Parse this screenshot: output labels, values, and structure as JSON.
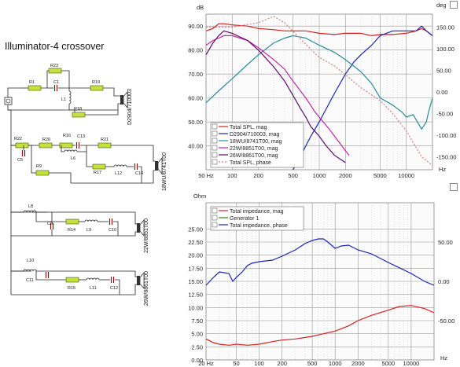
{
  "title": "Illuminator-4 crossover",
  "schematic": {
    "components": [
      "R1",
      "R23",
      "C1",
      "L1",
      "R19",
      "R18",
      "R22",
      "R20",
      "R16",
      "C13",
      "L6",
      "C5",
      "R21",
      "R9",
      "R17",
      "L12",
      "C14",
      "L8",
      "C9",
      "R14",
      "L9",
      "C10",
      "L10",
      "C11",
      "R15",
      "L11",
      "C12"
    ],
    "drivers": [
      "D2904/710003",
      "18WU/8741T00",
      "22W/8851T00",
      "26W/8861T00"
    ]
  },
  "chart_data": [
    {
      "type": "line",
      "y_unit": "dB",
      "y2_unit": "deg",
      "x_unit": "Hz",
      "x_scale": "log",
      "xlim": [
        50,
        20000
      ],
      "ylim": [
        30,
        95
      ],
      "y2lim": [
        -180,
        180
      ],
      "grid": true,
      "x_ticks": [
        "50 Hz",
        "100",
        "200",
        "500",
        "1000",
        "2000",
        "5000",
        "10000"
      ],
      "y_ticks": [
        "90.00",
        "80.00",
        "70.00",
        "60.00",
        "50.00",
        "40.00"
      ],
      "y2_ticks": [
        "150.00",
        "100.00",
        "50.00",
        "0.00",
        "-50.00",
        "-100.00",
        "-150.00"
      ],
      "legend_position": "bottom-left",
      "series": [
        {
          "name": "Total SPL, mag",
          "color": "#d42020",
          "axis": "left",
          "x": [
            50,
            60,
            70,
            80,
            100,
            150,
            200,
            300,
            400,
            500,
            700,
            1000,
            1500,
            2000,
            3000,
            4000,
            5000,
            7000,
            10000,
            13000,
            15000,
            17000,
            20000
          ],
          "y": [
            88,
            89,
            91,
            91,
            90.5,
            90,
            89,
            88.5,
            88,
            88,
            88,
            87,
            86.5,
            87,
            87,
            86,
            86.5,
            86.5,
            87,
            88,
            89,
            88,
            86
          ]
        },
        {
          "name": "D2904/710003, mag",
          "color": "#1a24b4",
          "axis": "left",
          "x": [
            500,
            600,
            700,
            800,
            1000,
            1500,
            2000,
            2500,
            3000,
            4000,
            5000,
            7000,
            10000,
            13000,
            15000,
            17000,
            20000
          ],
          "y": [
            30,
            35,
            40,
            44,
            50,
            62,
            70,
            75,
            78,
            82,
            86,
            88,
            88,
            88,
            90,
            88,
            86
          ]
        },
        {
          "name": "18WU/8741T00, mag",
          "color": "#2a8a9a",
          "axis": "left",
          "x": [
            50,
            70,
            100,
            150,
            200,
            300,
            400,
            500,
            700,
            1000,
            1500,
            2000,
            3000,
            4000,
            5000,
            7000,
            9000,
            10000,
            12000,
            15000,
            17000,
            18000,
            20000
          ],
          "y": [
            58,
            63,
            68,
            74,
            78,
            83,
            85,
            86,
            85,
            82,
            79,
            76,
            71,
            66,
            60,
            57,
            54,
            52,
            53,
            47,
            50,
            54,
            60
          ]
        },
        {
          "name": "22W/8851T00, mag",
          "color": "#c424a4",
          "axis": "left",
          "x": [
            50,
            60,
            70,
            80,
            100,
            150,
            200,
            300,
            400,
            500,
            700,
            900,
            1000,
            1300,
            1500,
            2000,
            2200
          ],
          "y": [
            82,
            84,
            85,
            86,
            86,
            84,
            81,
            76,
            72,
            67,
            60,
            54,
            52,
            47,
            44,
            38,
            36
          ]
        },
        {
          "name": "26W/8861T00, mag",
          "color": "#5a0a6a",
          "axis": "left",
          "x": [
            50,
            60,
            70,
            80,
            100,
            150,
            200,
            300,
            400,
            500,
            600,
            700,
            800,
            1000,
            1200,
            1500,
            2000
          ],
          "y": [
            78,
            83,
            86,
            88,
            87,
            84,
            80,
            73,
            67,
            61,
            56,
            52,
            48,
            44,
            40,
            36,
            33
          ]
        },
        {
          "name": "Total SPL, phase",
          "color": "#d08080",
          "axis": "right",
          "x": [
            50,
            100,
            200,
            300,
            400,
            500,
            700,
            1000,
            1500,
            2000,
            3000,
            5000,
            7000,
            10000,
            15000,
            20000
          ],
          "y": [
            150,
            150,
            160,
            175,
            160,
            140,
            110,
            80,
            60,
            40,
            10,
            -20,
            -50,
            -90,
            -150,
            -170
          ]
        }
      ]
    },
    {
      "type": "line",
      "y_unit": "Ohm",
      "x_unit": "Hz",
      "x_scale": "log",
      "xlim": [
        20,
        20000
      ],
      "ylim": [
        0,
        30
      ],
      "y2lim": [
        -100,
        100
      ],
      "grid": true,
      "x_ticks": [
        "20 Hz",
        "50",
        "100",
        "200",
        "500",
        "1000",
        "2000",
        "5000",
        "10000"
      ],
      "y_ticks": [
        "25.00",
        "22.50",
        "20.00",
        "17.50",
        "15.00",
        "12.50",
        "10.00",
        "7.50",
        "5.00",
        "2.50",
        "0.00"
      ],
      "y2_ticks": [
        "50.00",
        "0.00",
        "-50.00"
      ],
      "legend_position": "top-left",
      "series": [
        {
          "name": "Total impedance, mag",
          "color": "#d42020",
          "axis": "left",
          "x": [
            20,
            25,
            30,
            40,
            50,
            70,
            100,
            150,
            200,
            300,
            500,
            700,
            1000,
            1500,
            2000,
            3000,
            5000,
            7000,
            10000,
            15000,
            20000
          ],
          "y": [
            4,
            3.3,
            3,
            2.8,
            3,
            2.8,
            3,
            3.5,
            3.8,
            4,
            4.5,
            5,
            5.5,
            6.5,
            7.5,
            8.5,
            9.5,
            10.2,
            10.4,
            9.8,
            9
          ]
        },
        {
          "name": "Generator 1",
          "color": "#1d8a1d",
          "axis": "left",
          "x": [],
          "y": []
        },
        {
          "name": "Total impedance, phase",
          "color": "#1a24b4",
          "axis": "right",
          "x": [
            20,
            25,
            30,
            40,
            45,
            50,
            60,
            70,
            80,
            100,
            150,
            200,
            300,
            400,
            500,
            600,
            700,
            800,
            1000,
            1200,
            1500,
            2000,
            3000,
            5000,
            10000,
            15000,
            20000
          ],
          "y": [
            -5,
            5,
            12,
            10,
            0,
            5,
            12,
            20,
            23,
            25,
            27,
            32,
            40,
            48,
            52,
            54,
            54,
            50,
            42,
            45,
            46,
            40,
            35,
            24,
            10,
            0,
            -5
          ]
        }
      ]
    }
  ]
}
